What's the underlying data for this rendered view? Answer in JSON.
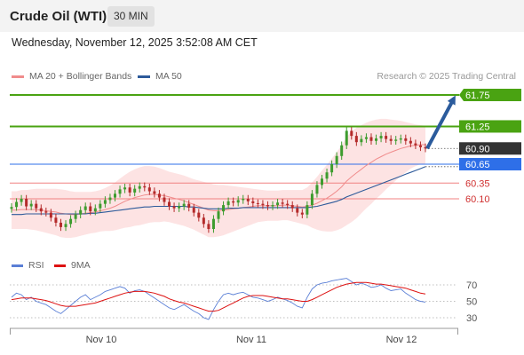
{
  "header": {
    "title": "Crude Oil (WTI)",
    "timeframe": "30 MIN"
  },
  "date_line": "Wednesday, November 12, 2025 3:52:08 AM CET",
  "legend": [
    {
      "label": "MA 20 + Bollinger Bands",
      "color": "#f08c8c"
    },
    {
      "label": "MA 50",
      "color": "#2d5a9a"
    }
  ],
  "rsi_legend": [
    {
      "label": "RSI",
      "color": "#5a7fd6"
    },
    {
      "label": "9MA",
      "color": "#dd1111"
    }
  ],
  "credit": "Research © 2025 Trading Central",
  "colors": {
    "green": "#4aa312",
    "red": "#f08080",
    "blue": "#2e6fe8",
    "dark": "#333333",
    "arrow": "#2b5b9c"
  },
  "chart_data": [
    {
      "type": "candlestick",
      "x_labels": [
        "Nov 10",
        "Nov 11",
        "Nov 12"
      ],
      "levels": [
        {
          "value": 61.75,
          "label": "61.75",
          "kind": "resistance-target"
        },
        {
          "value": 61.25,
          "label": "61.25",
          "kind": "resistance"
        },
        {
          "value": 60.9,
          "label": "60.90",
          "kind": "last-price"
        },
        {
          "value": 60.65,
          "label": "60.65",
          "kind": "pivot"
        },
        {
          "value": 60.35,
          "label": "60.35",
          "kind": "support"
        },
        {
          "value": 60.1,
          "label": "60.10",
          "kind": "support"
        }
      ],
      "close": [
        59.97,
        60.05,
        60.1,
        59.98,
        60.02,
        59.95,
        59.9,
        59.88,
        59.8,
        59.72,
        59.65,
        59.7,
        59.78,
        59.85,
        59.92,
        59.98,
        59.9,
        59.95,
        60.02,
        60.08,
        60.12,
        60.18,
        60.25,
        60.28,
        60.2,
        60.26,
        60.3,
        60.28,
        60.22,
        60.18,
        60.12,
        60.05,
        59.98,
        59.95,
        59.98,
        60.02,
        59.96,
        59.88,
        59.8,
        59.7,
        59.62,
        59.78,
        59.9,
        60.0,
        60.06,
        60.04,
        60.08,
        60.1,
        60.06,
        60.03,
        60.02,
        60.0,
        59.98,
        60.0,
        60.04,
        60.02,
        60.0,
        59.95,
        59.88,
        59.85,
        60.0,
        60.18,
        60.32,
        60.42,
        60.52,
        60.65,
        60.78,
        60.95,
        61.18,
        61.1,
        61.0,
        61.05,
        61.08,
        61.02,
        61.06,
        61.1,
        61.05,
        61.02,
        61.04,
        61.06,
        61.02,
        60.98,
        60.95,
        60.92,
        60.9
      ],
      "ma20": [
        59.92,
        59.92,
        59.93,
        59.93,
        59.93,
        59.93,
        59.92,
        59.91,
        59.9,
        59.89,
        59.87,
        59.86,
        59.85,
        59.85,
        59.86,
        59.87,
        59.88,
        59.89,
        59.91,
        59.93,
        59.95,
        59.98,
        60.02,
        60.06,
        60.09,
        60.12,
        60.14,
        60.16,
        60.17,
        60.17,
        60.16,
        60.15,
        60.13,
        60.11,
        60.09,
        60.07,
        60.04,
        60.01,
        59.98,
        59.95,
        59.92,
        59.91,
        59.91,
        59.92,
        59.93,
        59.94,
        59.95,
        59.96,
        59.97,
        59.98,
        59.99,
        59.99,
        59.99,
        59.99,
        59.99,
        60.0,
        60.0,
        59.99,
        59.98,
        59.97,
        59.98,
        60.0,
        60.03,
        60.07,
        60.11,
        60.16,
        60.22,
        60.29,
        60.38,
        60.45,
        60.51,
        60.57,
        60.63,
        60.68,
        60.73,
        60.77,
        60.81,
        60.84,
        60.87,
        60.9,
        60.92,
        60.94,
        60.95,
        60.96,
        60.96
      ],
      "ma50": [
        59.85,
        59.85,
        59.85,
        59.86,
        59.86,
        59.86,
        59.86,
        59.86,
        59.86,
        59.86,
        59.86,
        59.86,
        59.86,
        59.86,
        59.86,
        59.86,
        59.87,
        59.87,
        59.88,
        59.89,
        59.9,
        59.91,
        59.92,
        59.93,
        59.94,
        59.95,
        59.96,
        59.97,
        59.97,
        59.98,
        59.98,
        59.98,
        59.98,
        59.98,
        59.98,
        59.98,
        59.97,
        59.97,
        59.96,
        59.95,
        59.94,
        59.94,
        59.94,
        59.94,
        59.95,
        59.95,
        59.95,
        59.96,
        59.96,
        59.96,
        59.96,
        59.96,
        59.96,
        59.96,
        59.96,
        59.96,
        59.96,
        59.96,
        59.96,
        59.96,
        59.96,
        59.97,
        59.98,
        60.0,
        60.02,
        60.04,
        60.06,
        60.09,
        60.13,
        60.16,
        60.19,
        60.22,
        60.25,
        60.28,
        60.31,
        60.34,
        60.37,
        60.4,
        60.43,
        60.46,
        60.49,
        60.52,
        60.55,
        60.58,
        60.61
      ],
      "band_width": [
        0.3,
        0.3,
        0.31,
        0.31,
        0.32,
        0.33,
        0.34,
        0.35,
        0.36,
        0.37,
        0.38,
        0.38,
        0.37,
        0.36,
        0.35,
        0.34,
        0.33,
        0.33,
        0.33,
        0.34,
        0.36,
        0.38,
        0.4,
        0.42,
        0.44,
        0.45,
        0.46,
        0.46,
        0.45,
        0.44,
        0.43,
        0.41,
        0.4,
        0.4,
        0.4,
        0.4,
        0.4,
        0.4,
        0.41,
        0.42,
        0.43,
        0.42,
        0.41,
        0.4,
        0.38,
        0.36,
        0.34,
        0.32,
        0.3,
        0.28,
        0.26,
        0.25,
        0.24,
        0.24,
        0.24,
        0.24,
        0.24,
        0.25,
        0.26,
        0.27,
        0.3,
        0.36,
        0.42,
        0.48,
        0.53,
        0.58,
        0.62,
        0.66,
        0.7,
        0.72,
        0.72,
        0.7,
        0.68,
        0.66,
        0.63,
        0.6,
        0.56,
        0.52,
        0.48,
        0.44,
        0.4,
        0.36,
        0.33,
        0.31,
        0.3
      ]
    },
    {
      "type": "line",
      "name": "RSI panel",
      "y_ticks": [
        70,
        50,
        30
      ],
      "rsi": [
        55,
        60,
        58,
        52,
        55,
        50,
        48,
        46,
        42,
        38,
        35,
        40,
        45,
        50,
        55,
        58,
        52,
        55,
        58,
        62,
        64,
        66,
        68,
        66,
        60,
        63,
        64,
        62,
        58,
        54,
        50,
        46,
        42,
        40,
        43,
        46,
        42,
        38,
        35,
        30,
        28,
        40,
        50,
        58,
        60,
        58,
        60,
        61,
        58,
        55,
        54,
        52,
        50,
        52,
        55,
        53,
        51,
        48,
        44,
        42,
        55,
        65,
        70,
        72,
        73,
        75,
        76,
        77,
        78,
        74,
        70,
        72,
        70,
        67,
        68,
        70,
        66,
        63,
        64,
        65,
        60,
        56,
        52,
        50,
        49
      ],
      "rsi_ma": [
        52,
        53,
        54,
        54,
        54,
        53,
        52,
        51,
        49,
        47,
        45,
        44,
        44,
        44,
        45,
        46,
        47,
        48,
        50,
        52,
        54,
        56,
        58,
        60,
        61,
        62,
        62,
        62,
        61,
        60,
        58,
        56,
        53,
        51,
        49,
        48,
        46,
        44,
        42,
        40,
        38,
        38,
        39,
        42,
        45,
        48,
        51,
        54,
        56,
        57,
        57,
        57,
        56,
        55,
        54,
        53,
        53,
        52,
        51,
        50,
        50,
        52,
        55,
        58,
        61,
        64,
        67,
        69,
        71,
        72,
        73,
        73,
        73,
        72,
        71,
        71,
        70,
        69,
        68,
        67,
        66,
        64,
        62,
        60,
        59
      ]
    }
  ]
}
